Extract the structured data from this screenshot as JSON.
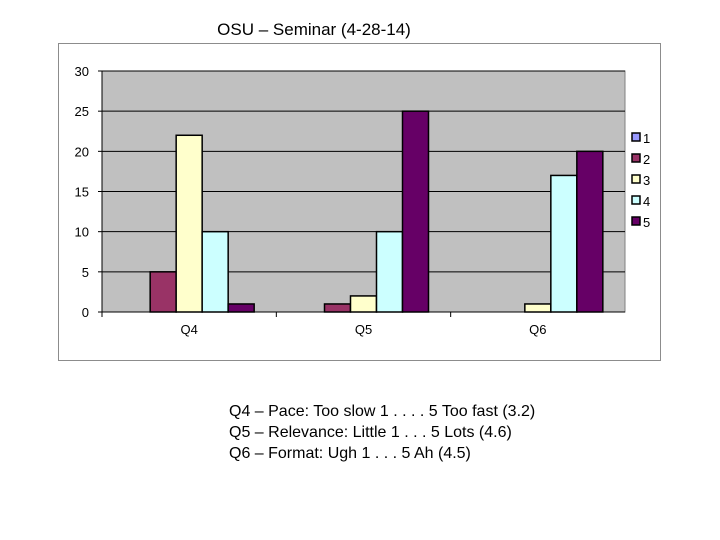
{
  "page": {
    "title": "OSU – Seminar (4-28-14)"
  },
  "chart_data": {
    "type": "bar",
    "title": "",
    "xlabel": "",
    "ylabel": "",
    "categories": [
      "Q4",
      "Q5",
      "Q6"
    ],
    "ylim": [
      0,
      30
    ],
    "yticks": [
      0,
      5,
      10,
      15,
      20,
      25,
      30
    ],
    "grid": true,
    "legend": "right",
    "series": [
      {
        "name": "1",
        "color": "#9999ff",
        "values": [
          0,
          0,
          0
        ]
      },
      {
        "name": "2",
        "color": "#993366",
        "values": [
          5,
          1,
          0
        ]
      },
      {
        "name": "3",
        "color": "#ffffcc",
        "values": [
          22,
          2,
          1
        ]
      },
      {
        "name": "4",
        "color": "#ccffff",
        "values": [
          10,
          10,
          17
        ]
      },
      {
        "name": "5",
        "color": "#660066",
        "values": [
          1,
          25,
          20
        ]
      }
    ],
    "plot_background": "#c0c0c0"
  },
  "notes": [
    "Q4 – Pace: Too slow 1 . . . . 5 Too fast (3.2)",
    "Q5 – Relevance: Little 1 . . . 5 Lots (4.6)",
    "Q6 – Format: Ugh 1 . . . 5 Ah (4.5)"
  ]
}
